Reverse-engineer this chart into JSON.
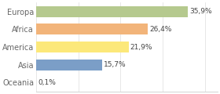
{
  "categories": [
    "Europa",
    "Africa",
    "America",
    "Asia",
    "Oceania"
  ],
  "values": [
    35.9,
    26.4,
    21.9,
    15.7,
    0.1
  ],
  "labels": [
    "35,9%",
    "26,4%",
    "21,9%",
    "15,7%",
    "0,1%"
  ],
  "bar_colors": [
    "#b5c98e",
    "#f2b47a",
    "#fce87a",
    "#7b9ec7",
    "#f2b47a"
  ],
  "background_color": "#ffffff",
  "text_color": "#666666",
  "xlim": [
    0,
    43
  ],
  "figsize": [
    2.8,
    1.2
  ],
  "dpi": 100
}
